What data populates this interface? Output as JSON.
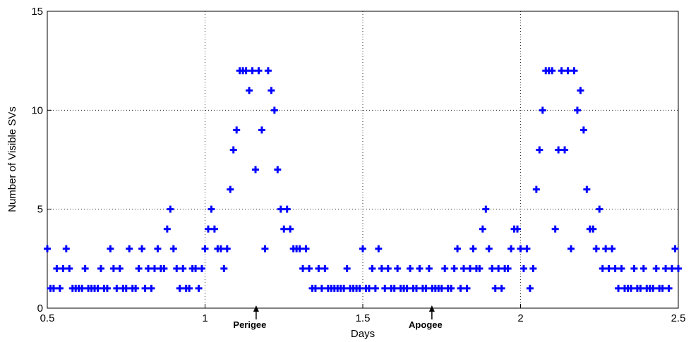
{
  "chart_data": {
    "type": "scatter",
    "xlabel": "Days",
    "ylabel": "Number of Visible SVs",
    "xlim": [
      0.5,
      2.5
    ],
    "ylim": [
      0,
      15
    ],
    "xticks": [
      0.5,
      1,
      1.5,
      2,
      2.5
    ],
    "yticks": [
      0,
      5,
      10,
      15
    ],
    "grid": true,
    "annotations": [
      {
        "text": "Perigee",
        "x": 1.162
      },
      {
        "text": "Apogee",
        "x": 1.719
      }
    ],
    "series": [
      {
        "color": "#0000ff",
        "x": [
          0.5,
          0.51,
          0.52,
          0.53,
          0.54,
          0.55,
          0.56,
          0.57,
          0.58,
          0.59,
          0.6,
          0.61,
          0.62,
          0.63,
          0.64,
          0.65,
          0.66,
          0.67,
          0.68,
          0.69,
          0.7,
          0.71,
          0.72,
          0.73,
          0.74,
          0.75,
          0.76,
          0.77,
          0.78,
          0.79,
          0.8,
          0.81,
          0.82,
          0.83,
          0.84,
          0.85,
          0.86,
          0.87,
          0.88,
          0.89,
          0.9,
          0.91,
          0.92,
          0.93,
          0.94,
          0.95,
          0.96,
          0.97,
          0.98,
          0.99,
          1.0,
          1.01,
          1.02,
          1.03,
          1.04,
          1.05,
          1.06,
          1.07,
          1.08,
          1.09,
          1.1,
          1.11,
          1.12,
          1.13,
          1.14,
          1.15,
          1.16,
          1.17,
          1.18,
          1.19,
          1.2,
          1.21,
          1.22,
          1.23,
          1.24,
          1.25,
          1.26,
          1.27,
          1.28,
          1.29,
          1.3,
          1.31,
          1.32,
          1.33,
          1.34,
          1.35,
          1.36,
          1.37,
          1.38,
          1.39,
          1.4,
          1.41,
          1.42,
          1.43,
          1.44,
          1.45,
          1.46,
          1.47,
          1.48,
          1.49,
          1.5,
          1.51,
          1.52,
          1.53,
          1.54,
          1.55,
          1.56,
          1.57,
          1.58,
          1.59,
          1.6,
          1.61,
          1.62,
          1.63,
          1.64,
          1.65,
          1.66,
          1.67,
          1.68,
          1.69,
          1.7,
          1.71,
          1.72,
          1.73,
          1.74,
          1.75,
          1.76,
          1.77,
          1.78,
          1.79,
          1.8,
          1.81,
          1.82,
          1.83,
          1.84,
          1.85,
          1.86,
          1.87,
          1.88,
          1.89,
          1.9,
          1.91,
          1.92,
          1.93,
          1.94,
          1.95,
          1.96,
          1.97,
          1.98,
          1.99,
          2.0,
          2.01,
          2.02,
          2.03,
          2.04,
          2.05,
          2.06,
          2.07,
          2.08,
          2.09,
          2.1,
          2.11,
          2.12,
          2.13,
          2.14,
          2.15,
          2.16,
          2.17,
          2.18,
          2.19,
          2.2,
          2.21,
          2.22,
          2.23,
          2.24,
          2.25,
          2.26,
          2.27,
          2.28,
          2.29,
          2.3,
          2.31,
          2.32,
          2.33,
          2.34,
          2.35,
          2.36,
          2.37,
          2.38,
          2.39,
          2.4,
          2.41,
          2.42,
          2.43,
          2.44,
          2.45,
          2.46,
          2.47,
          2.48,
          2.49,
          2.5
        ],
        "values": [
          3,
          1,
          1,
          2,
          1,
          2,
          3,
          2,
          1,
          1,
          1,
          1,
          2,
          1,
          1,
          1,
          1,
          2,
          1,
          1,
          3,
          2,
          1,
          2,
          1,
          1,
          3,
          1,
          1,
          2,
          3,
          1,
          2,
          1,
          2,
          3,
          2,
          2,
          4,
          5,
          3,
          2,
          1,
          2,
          1,
          1,
          2,
          2,
          1,
          2,
          3,
          4,
          5,
          4,
          3,
          3,
          2,
          3,
          6,
          8,
          9,
          12,
          12,
          12,
          11,
          12,
          7,
          12,
          9,
          3,
          12,
          11,
          10,
          7,
          5,
          4,
          5,
          4,
          3,
          3,
          3,
          2,
          3,
          2,
          1,
          1,
          2,
          1,
          2,
          1,
          1,
          1,
          1,
          1,
          1,
          2,
          1,
          1,
          1,
          1,
          3,
          1,
          1,
          2,
          1,
          3,
          2,
          1,
          2,
          1,
          1,
          2,
          1,
          1,
          1,
          2,
          1,
          1,
          2,
          1,
          1,
          2,
          1,
          1,
          1,
          1,
          2,
          1,
          1,
          2,
          3,
          1,
          2,
          1,
          2,
          3,
          2,
          2,
          4,
          5,
          3,
          2,
          1,
          2,
          1,
          2,
          2,
          3,
          4,
          4,
          3,
          2,
          3,
          1,
          2,
          6,
          8,
          10,
          12,
          12,
          12,
          4,
          8,
          12,
          8,
          12,
          3,
          12,
          10,
          11,
          9,
          6,
          4,
          4,
          3,
          5,
          2,
          3,
          2,
          3,
          2,
          1,
          2,
          1,
          1,
          1,
          2,
          1,
          1,
          2,
          1,
          1,
          1,
          2,
          1,
          1,
          2,
          1,
          2,
          3,
          2
        ]
      }
    ]
  }
}
